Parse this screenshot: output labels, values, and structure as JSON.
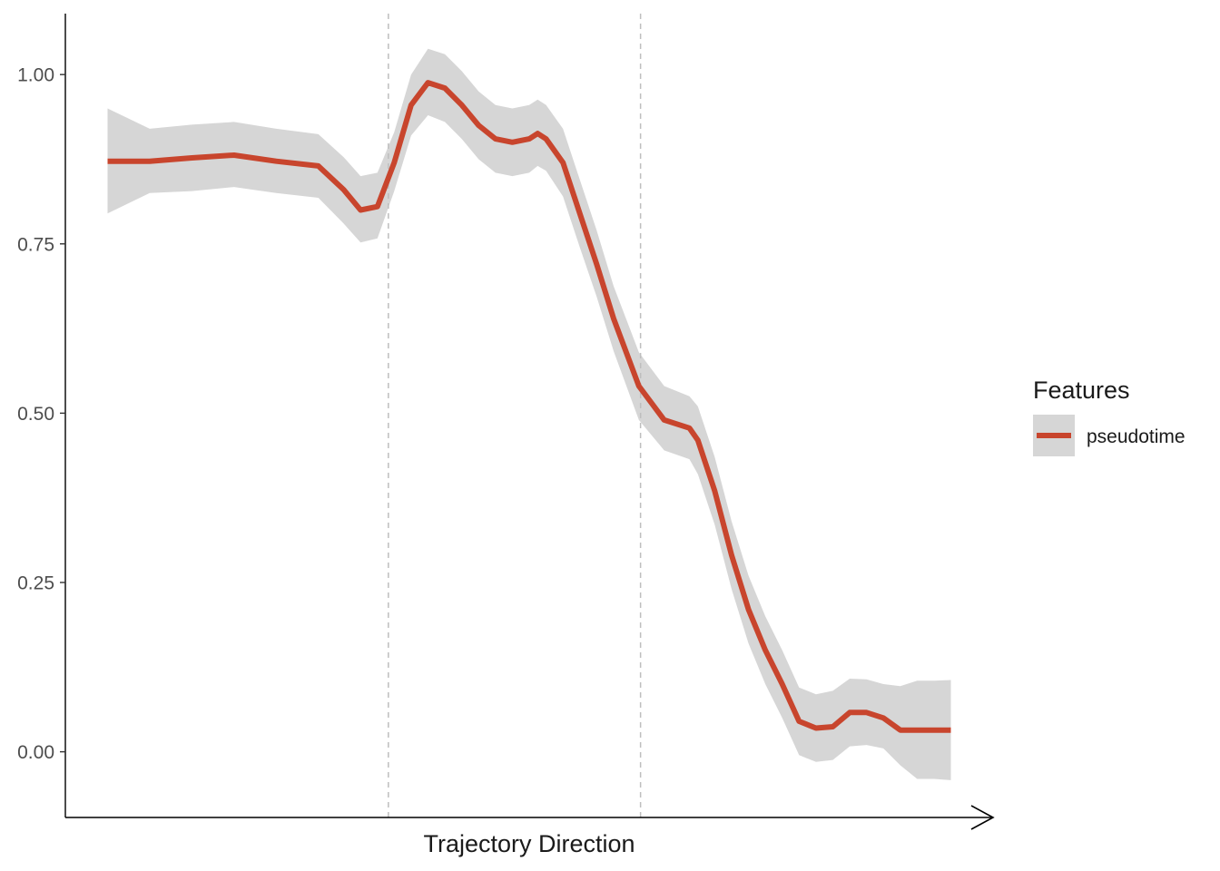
{
  "chart_data": {
    "type": "line",
    "xlabel": "Trajectory Direction",
    "ylabel": "",
    "ylim": [
      -0.097,
      1.09
    ],
    "xlim": [
      -0.05,
      1.05
    ],
    "grid": false,
    "y_ticks": [
      {
        "value": 0.0,
        "label": "0.00"
      },
      {
        "value": 0.25,
        "label": "0.25"
      },
      {
        "value": 0.5,
        "label": "0.50"
      },
      {
        "value": 0.75,
        "label": "0.75"
      },
      {
        "value": 1.0,
        "label": "1.00"
      }
    ],
    "vlines": [
      0.333,
      0.632
    ],
    "legend": {
      "title": "Features",
      "placement": "right",
      "entries": [
        {
          "label": "pseudotime"
        }
      ]
    },
    "colors": {
      "line": "#C8452D",
      "ribbon": "#D6D6D6",
      "vline": "#BEBEBE",
      "axis": "#000000"
    },
    "series": [
      {
        "name": "pseudotime",
        "x": [
          0.0,
          0.05,
          0.1,
          0.15,
          0.2,
          0.25,
          0.28,
          0.3,
          0.32,
          0.34,
          0.36,
          0.38,
          0.4,
          0.42,
          0.44,
          0.46,
          0.48,
          0.5,
          0.51,
          0.52,
          0.54,
          0.56,
          0.58,
          0.6,
          0.63,
          0.66,
          0.69,
          0.7,
          0.72,
          0.74,
          0.76,
          0.78,
          0.8,
          0.82,
          0.84,
          0.86,
          0.88,
          0.9,
          0.92,
          0.94,
          0.96,
          0.98,
          1.0
        ],
        "y": [
          0.872,
          0.872,
          0.877,
          0.881,
          0.872,
          0.865,
          0.83,
          0.8,
          0.805,
          0.87,
          0.955,
          0.988,
          0.98,
          0.955,
          0.925,
          0.905,
          0.9,
          0.905,
          0.913,
          0.905,
          0.87,
          0.795,
          0.72,
          0.64,
          0.54,
          0.49,
          0.478,
          0.46,
          0.385,
          0.29,
          0.21,
          0.15,
          0.1,
          0.045,
          0.035,
          0.037,
          0.058,
          0.058,
          0.05,
          0.032,
          0.032,
          0.032,
          0.032
        ],
        "lower": [
          0.795,
          0.825,
          0.828,
          0.834,
          0.825,
          0.818,
          0.78,
          0.752,
          0.758,
          0.828,
          0.91,
          0.94,
          0.93,
          0.905,
          0.875,
          0.855,
          0.85,
          0.855,
          0.865,
          0.858,
          0.82,
          0.745,
          0.672,
          0.592,
          0.49,
          0.445,
          0.432,
          0.41,
          0.335,
          0.24,
          0.16,
          0.1,
          0.05,
          -0.005,
          -0.015,
          -0.012,
          0.008,
          0.01,
          0.005,
          -0.02,
          -0.04,
          -0.04,
          -0.042
        ],
        "upper": [
          0.95,
          0.92,
          0.926,
          0.93,
          0.92,
          0.912,
          0.878,
          0.85,
          0.855,
          0.915,
          1.0,
          1.038,
          1.03,
          1.005,
          0.975,
          0.955,
          0.95,
          0.955,
          0.963,
          0.955,
          0.92,
          0.845,
          0.77,
          0.688,
          0.59,
          0.54,
          0.525,
          0.51,
          0.435,
          0.34,
          0.26,
          0.2,
          0.15,
          0.095,
          0.085,
          0.09,
          0.108,
          0.107,
          0.1,
          0.097,
          0.105,
          0.105,
          0.106
        ]
      }
    ]
  }
}
